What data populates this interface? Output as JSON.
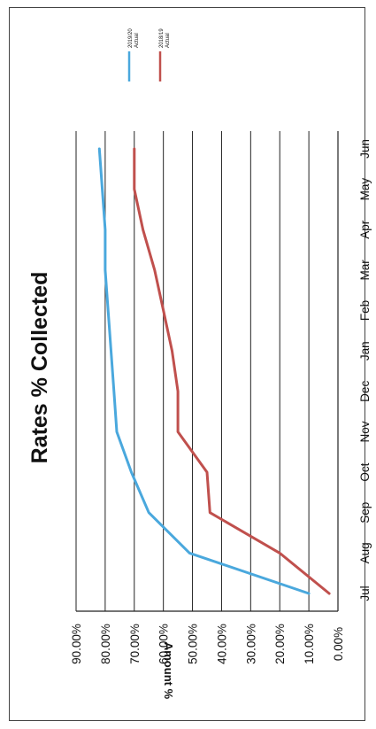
{
  "chart_data": {
    "type": "line",
    "orientation": "rotated-90-clockwise",
    "title": "Rates % Collected",
    "ylabel": "Amount %",
    "xlabel": "",
    "categories": [
      "Jul",
      "Aug",
      "Sep",
      "Oct",
      "Nov",
      "Dec",
      "Jan",
      "Feb",
      "Mar",
      "Apr",
      "May",
      "Jun"
    ],
    "y_ticks": [
      "0.00%",
      "10.00%",
      "20.00%",
      "30.00%",
      "40.00%",
      "50.00%",
      "60.00%",
      "70.00%",
      "80.00%",
      "90.00%"
    ],
    "ylim": [
      0,
      90
    ],
    "grid": true,
    "legend_position": "top-right",
    "series": [
      {
        "name": "2019/20 Actual",
        "color": "#4aa8dd",
        "values": [
          10,
          51,
          65,
          71,
          76,
          77,
          78,
          79,
          80,
          80,
          81,
          82
        ]
      },
      {
        "name": "2018/19 Actual",
        "color": "#c0504d",
        "values": [
          3,
          20,
          44,
          45,
          55,
          55,
          57,
          60,
          63,
          67,
          70,
          70
        ]
      }
    ]
  }
}
